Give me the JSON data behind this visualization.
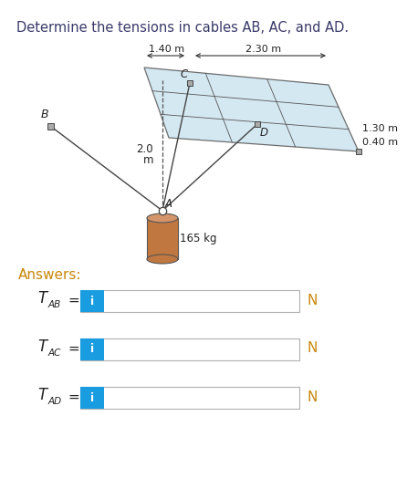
{
  "title_parts": [
    {
      "text": "Determine the tensions in cables ",
      "style": "normal"
    },
    {
      "text": "AB",
      "style": "italic"
    },
    {
      "text": ", ",
      "style": "normal"
    },
    {
      "text": "AC",
      "style": "italic"
    },
    {
      "text": ", and ",
      "style": "normal"
    },
    {
      "text": "AD",
      "style": "italic"
    },
    {
      "text": ".",
      "style": "normal"
    }
  ],
  "title_color": "#3a3a6a",
  "title_fontsize": 10.5,
  "answers_label": "Answers:",
  "answers_color": "#c8860a",
  "answers_fontsize": 11,
  "rows": [
    {
      "label_main": "T",
      "label_sub": "AB",
      "unit": "N"
    },
    {
      "label_main": "T",
      "label_sub": "AC",
      "unit": "N"
    },
    {
      "label_main": "T",
      "label_sub": "AD",
      "unit": "N"
    }
  ],
  "input_box_color": "#ffffff",
  "input_box_border": "#b0b0b0",
  "info_btn_color": "#1a9de0",
  "info_btn_text": "i",
  "unit_color": "#c8860a",
  "bg_color": "#ffffff",
  "dim_140": "1.40 m",
  "dim_230": "2.30 m",
  "dim_130": "1.30 m",
  "dim_040": "0.40 m",
  "dim_20": "2.0",
  "dim_m": "m",
  "dim_165": "165 kg",
  "label_A": "A",
  "label_B": "B",
  "label_C": "C",
  "label_D": "D",
  "plate_color": "#cde4f0",
  "plate_edge_color": "#555555",
  "cable_color": "#444444",
  "dashed_color": "#555555",
  "cylinder_color_top": "#d4956a",
  "cylinder_color_body": "#c07840",
  "bracket_color": "#aaaaaa",
  "text_color": "#222222"
}
